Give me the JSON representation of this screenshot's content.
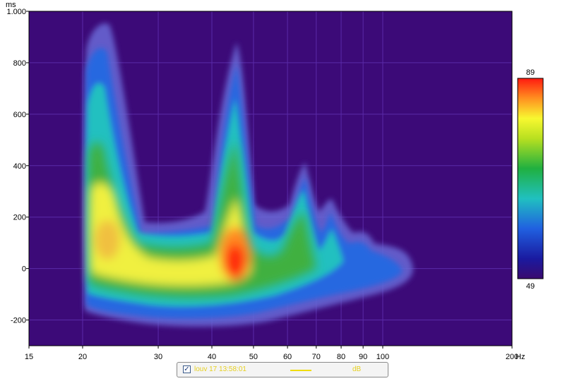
{
  "chart_data": {
    "type": "heatmap",
    "title": "",
    "xlabel": "",
    "ylabel": "",
    "x_unit": "Hz",
    "y_unit": "ms",
    "x_scale": "log",
    "xlim": [
      15,
      200
    ],
    "ylim": [
      -300,
      1000
    ],
    "x_ticks": [
      15,
      20,
      30,
      40,
      50,
      60,
      70,
      80,
      90,
      100,
      200
    ],
    "x_tick_labels": [
      "15",
      "20",
      "30",
      "40",
      "50",
      "60",
      "70",
      "80",
      "90",
      "100",
      "200"
    ],
    "y_ticks": [
      -200,
      0,
      200,
      400,
      600,
      800,
      1000
    ],
    "y_tick_labels": [
      "-200",
      "0",
      "200",
      "400",
      "600",
      "800",
      "1.000"
    ],
    "grid": true,
    "colorbar": {
      "min": 49,
      "max": 89,
      "min_label": "49",
      "max_label": "89"
    },
    "peaks": [
      {
        "freq_hz": 22,
        "time_ms": 100,
        "level_db": 79,
        "extent_ms": [
          -180,
          960
        ]
      },
      {
        "freq_hz": 46,
        "time_ms": 40,
        "level_db": 89,
        "extent_ms": [
          -200,
          880
        ]
      },
      {
        "freq_hz": 64,
        "time_ms": 20,
        "level_db": 70,
        "extent_ms": [
          -150,
          410
        ]
      },
      {
        "freq_hz": 76,
        "time_ms": 20,
        "level_db": 65,
        "extent_ms": [
          -150,
          270
        ]
      },
      {
        "freq_hz": 92,
        "time_ms": 10,
        "level_db": 58,
        "extent_ms": [
          -120,
          150
        ]
      },
      {
        "freq_hz": 108,
        "time_ms": 0,
        "level_db": 54,
        "extent_ms": [
          -80,
          80
        ]
      }
    ],
    "legend": {
      "checked": true,
      "check_glyph": "✓",
      "series_name": "louv 17 13:58:01",
      "unit": "dB",
      "line_color": "#f0dc00"
    },
    "colors": {
      "background": "#3c0a78",
      "grid": "#5a2aa8"
    }
  }
}
